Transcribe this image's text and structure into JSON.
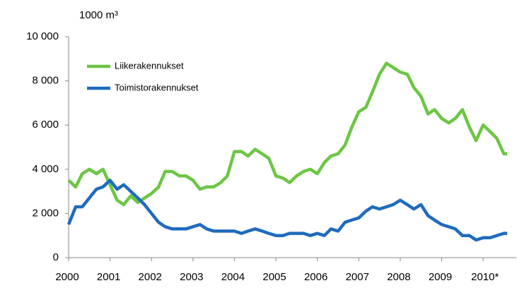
{
  "chart_data": {
    "type": "line",
    "y_axis_label": "1000 m³",
    "x": [
      2000,
      2000.17,
      2000.33,
      2000.5,
      2000.67,
      2000.83,
      2001,
      2001.17,
      2001.33,
      2001.5,
      2001.67,
      2001.83,
      2002,
      2002.17,
      2002.33,
      2002.5,
      2002.67,
      2002.83,
      2003,
      2003.17,
      2003.33,
      2003.5,
      2003.67,
      2003.83,
      2004,
      2004.17,
      2004.33,
      2004.5,
      2004.67,
      2004.83,
      2005,
      2005.17,
      2005.33,
      2005.5,
      2005.67,
      2005.83,
      2006,
      2006.17,
      2006.33,
      2006.5,
      2006.67,
      2006.83,
      2007,
      2007.17,
      2007.33,
      2007.5,
      2007.67,
      2007.83,
      2008,
      2008.17,
      2008.33,
      2008.5,
      2008.67,
      2008.83,
      2009,
      2009.17,
      2009.33,
      2009.5,
      2009.67,
      2009.83,
      2010,
      2010.17,
      2010.33,
      2010.5,
      2010.58
    ],
    "series": [
      {
        "name": "Liikerakennukset",
        "color": "#6cc644",
        "values": [
          3500,
          3200,
          3800,
          4000,
          3800,
          4000,
          3300,
          2600,
          2400,
          2800,
          2500,
          2700,
          2900,
          3200,
          3900,
          3900,
          3700,
          3700,
          3500,
          3100,
          3200,
          3200,
          3400,
          3700,
          4800,
          4800,
          4600,
          4900,
          4700,
          4500,
          3700,
          3600,
          3400,
          3700,
          3900,
          4000,
          3800,
          4300,
          4600,
          4700,
          5100,
          5900,
          6600,
          6800,
          7500,
          8300,
          8800,
          8600,
          8400,
          8300,
          7700,
          7300,
          6500,
          6700,
          6300,
          6100,
          6300,
          6700,
          5900,
          5300,
          6000,
          5700,
          5400,
          4700,
          4700
        ]
      },
      {
        "name": "Toimistorakennukset",
        "color": "#1f6bbf",
        "values": [
          1500,
          2300,
          2300,
          2700,
          3100,
          3200,
          3500,
          3100,
          3300,
          3000,
          2700,
          2400,
          2000,
          1600,
          1400,
          1300,
          1300,
          1300,
          1400,
          1500,
          1300,
          1200,
          1200,
          1200,
          1200,
          1100,
          1200,
          1300,
          1200,
          1100,
          1000,
          1000,
          1100,
          1100,
          1100,
          1000,
          1100,
          1000,
          1300,
          1200,
          1600,
          1700,
          1800,
          2100,
          2300,
          2200,
          2300,
          2400,
          2600,
          2400,
          2200,
          2400,
          1900,
          1700,
          1500,
          1400,
          1300,
          1000,
          1000,
          800,
          900,
          900,
          1000,
          1100,
          1100
        ]
      }
    ],
    "xlim": [
      2000,
      2010.8
    ],
    "xticks": [
      2000,
      2001,
      2002,
      2003,
      2004,
      2005,
      2006,
      2007,
      2008,
      2009,
      {
        "value": 2010,
        "label": "2010*"
      }
    ],
    "ylim": [
      0,
      10000
    ],
    "yticks": [
      0,
      {
        "value": 2000,
        "label": "2 000"
      },
      {
        "value": 4000,
        "label": "4 000"
      },
      {
        "value": 6000,
        "label": "6 000"
      },
      {
        "value": 8000,
        "label": "8 000"
      },
      {
        "value": 10000,
        "label": "10 000"
      }
    ],
    "grid": false
  }
}
